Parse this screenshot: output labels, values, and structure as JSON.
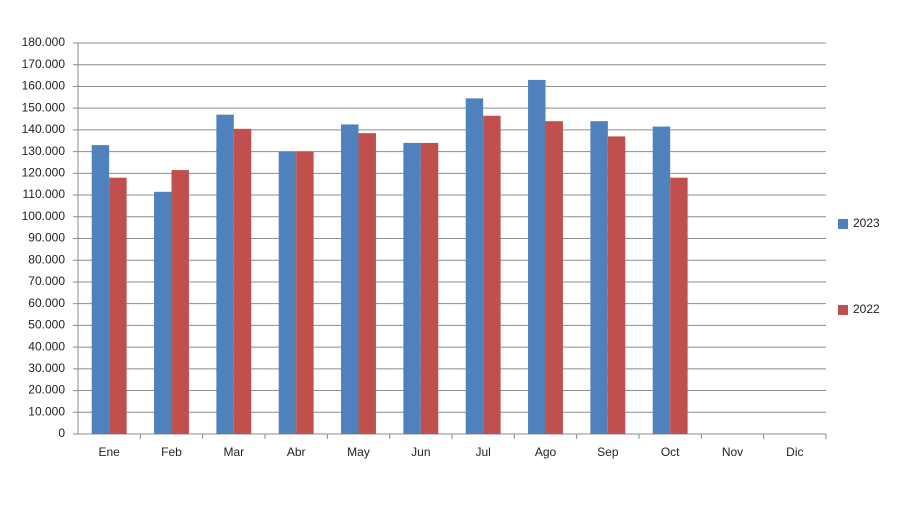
{
  "chart_data": {
    "type": "bar",
    "categories": [
      "Ene",
      "Feb",
      "Mar",
      "Abr",
      "May",
      "Jun",
      "Jul",
      "Ago",
      "Sep",
      "Oct",
      "Nov",
      "Dic"
    ],
    "series": [
      {
        "name": "2023",
        "color": "#4f81bd",
        "values": [
          133000,
          111500,
          147000,
          130000,
          142500,
          134000,
          154500,
          163000,
          144000,
          141500,
          null,
          null
        ]
      },
      {
        "name": "2022",
        "color": "#c0504d",
        "values": [
          118000,
          121500,
          140500,
          130000,
          138500,
          134000,
          146500,
          144000,
          137000,
          118000,
          null,
          null
        ]
      }
    ],
    "ylim": [
      0,
      180000
    ],
    "yticks": [
      0,
      {
        "value": 10000,
        "label": "10.000"
      },
      {
        "value": 20000,
        "label": "20.000"
      },
      {
        "value": 30000,
        "label": "30.000"
      },
      {
        "value": 40000,
        "label": "40.000"
      },
      {
        "value": 50000,
        "label": "50.000"
      },
      {
        "value": 60000,
        "label": "60.000"
      },
      {
        "value": 70000,
        "label": "70.000"
      },
      {
        "value": 80000,
        "label": "80.000"
      },
      {
        "value": 90000,
        "label": "90.000"
      },
      {
        "value": 100000,
        "label": "100.000"
      },
      {
        "value": 110000,
        "label": "110.000"
      },
      {
        "value": 120000,
        "label": "120.000"
      },
      {
        "value": 130000,
        "label": "130.000"
      },
      {
        "value": 140000,
        "label": "140.000"
      },
      {
        "value": 150000,
        "label": "150.000"
      },
      {
        "value": 160000,
        "label": "160.000"
      },
      {
        "value": 170000,
        "label": "170.000"
      },
      {
        "value": 180000,
        "label": "180.000"
      }
    ],
    "grid": true,
    "legend": "right"
  }
}
